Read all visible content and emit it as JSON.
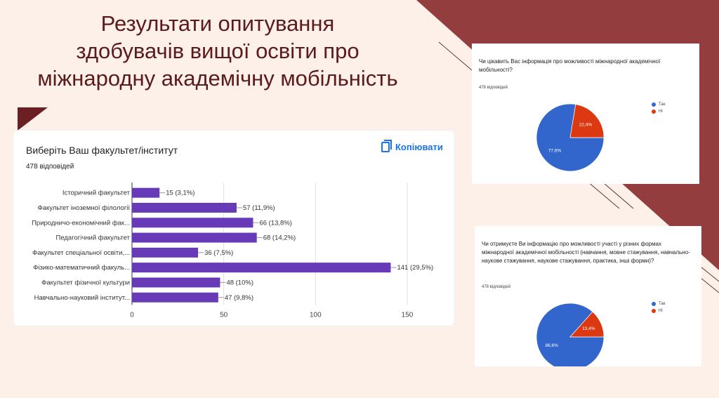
{
  "slide": {
    "title_lines": [
      "Результати опитування",
      "здобувачів вищої освіти про",
      "міжнародну академічну мобільність"
    ],
    "colors": {
      "background": "#fdf0e9",
      "accent": "#933d3e",
      "title": "#5b1a1c"
    }
  },
  "bar_card": {
    "title": "Виберіть Ваш факультет/інститут",
    "responses": "478 відповідей",
    "copy_label": "Копіювати",
    "copy_icon": "copy-icon"
  },
  "chart_data": [
    {
      "type": "bar",
      "orientation": "horizontal",
      "title": "Виберіть Ваш факультет/інститут",
      "categories": [
        "Історичний факультет",
        "Факультет іноземної філології",
        "Природничо-економічний фак...",
        "Педагогічний факультет",
        "Факультет спеціальної освіти,...",
        "Фізико-математичний факуль...",
        "Факультет фізичної культури",
        "Навчально-науковий інститут..."
      ],
      "values": [
        15,
        57,
        66,
        68,
        36,
        141,
        48,
        47
      ],
      "labels": [
        "15 (3,1%)",
        "57 (11,9%)",
        "66 (13,8%)",
        "68 (14,2%)",
        "36 (7,5%)",
        "141 (29,5%)",
        "48 (10%)",
        "47 (9,8%)"
      ],
      "xticks": [
        0,
        50,
        100,
        150
      ],
      "xlim": [
        0,
        150
      ],
      "color": "#673ab7",
      "grid": true
    },
    {
      "type": "pie",
      "title": "Чи цікавить Вас інформація про можливості міжнародної академічної мобільності?",
      "responses": "478 відповідей",
      "slices": [
        {
          "label": "Так",
          "value": 77.6,
          "text": "77,6%",
          "color": "#3366cc"
        },
        {
          "label": "Ні",
          "value": 22.4,
          "text": "22,4%",
          "color": "#dc3912"
        }
      ],
      "legend": "right"
    },
    {
      "type": "pie",
      "title": "Чи отримуєте Ви інформацію про можливості участі у різних формах міжнародної академічної мобільності (навчання, мовне стажування, навчально-наукове стажування, наукове стажування, практика, інші форми)?",
      "responses": "478 відповідей",
      "slices": [
        {
          "label": "Так",
          "value": 86.6,
          "text": "86,6%",
          "color": "#3366cc"
        },
        {
          "label": "Ні",
          "value": 13.4,
          "text": "13,4%",
          "color": "#dc3912"
        }
      ],
      "legend": "right"
    }
  ]
}
